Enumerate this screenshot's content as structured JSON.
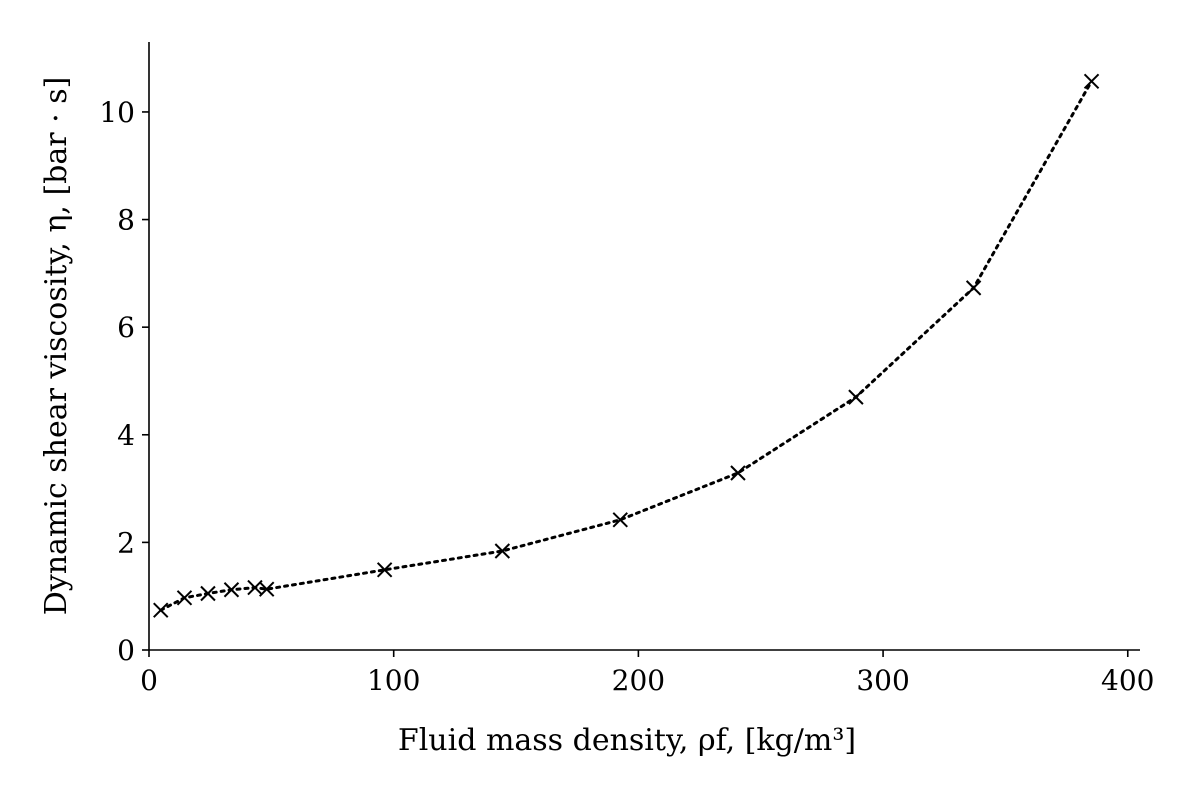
{
  "chart_data": {
    "type": "line",
    "xlabel": "Fluid mass density, ρf, [kg/m³]",
    "ylabel": "Dynamic shear viscosity, η, [bar · s]",
    "xlim": [
      0,
      405
    ],
    "ylim": [
      0,
      11.3
    ],
    "xticks": [
      0,
      100,
      200,
      300,
      400
    ],
    "yticks": [
      0,
      2,
      4,
      6,
      8,
      10
    ],
    "grid": false,
    "series": [
      {
        "marker": "x",
        "line_style": "dotted",
        "color": "#000000",
        "x": [
          4.8,
          14.5,
          24.1,
          33.7,
          43.3,
          48.1,
          96.3,
          144.4,
          192.6,
          240.7,
          288.9,
          337.0,
          385.2
        ],
        "y": [
          0.74,
          0.97,
          1.05,
          1.12,
          1.16,
          1.13,
          1.49,
          1.84,
          2.42,
          3.29,
          4.7,
          6.73,
          10.57
        ]
      }
    ]
  }
}
